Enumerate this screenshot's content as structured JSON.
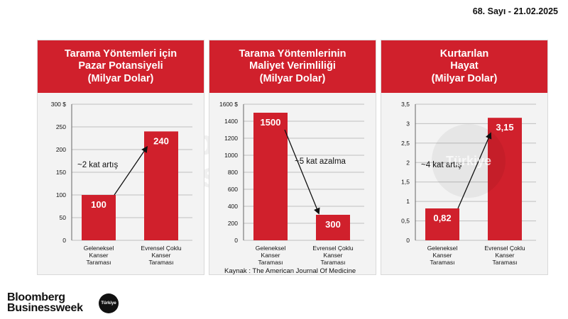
{
  "issue_line": "68. Sayı - 21.02.2025",
  "watermark": {
    "line1": "Bloomberg",
    "line2": "Businessweek",
    "badge": "Türkiye"
  },
  "source": "Kaynak : The American Journal Of Medicine",
  "logo": {
    "line1": "Bloomberg",
    "line2": "Businessweek",
    "badge": "Türkiye"
  },
  "colors": {
    "accent": "#d0202c",
    "bar": "#d0202c",
    "grid": "#bfbfbf"
  },
  "chart_data": [
    {
      "type": "bar",
      "title_lines": [
        "Tarama Yöntemleri için",
        "Pazar Potansiyeli",
        "(Milyar Dolar)"
      ],
      "categories": [
        [
          "Geleneksel",
          "Kanser",
          "Taraması"
        ],
        [
          "Evrensel Çoklu",
          "Kanser",
          "Taraması"
        ]
      ],
      "values": [
        100,
        240
      ],
      "value_labels": [
        "100",
        "240"
      ],
      "ylim": [
        0,
        300
      ],
      "ticks": [
        0,
        50,
        100,
        150,
        200,
        250,
        300
      ],
      "tick_labels": [
        "0",
        "50",
        "100",
        "150",
        "200",
        "250",
        "300 $"
      ],
      "annotation": "~2 kat artış"
    },
    {
      "type": "bar",
      "title_lines": [
        "Tarama Yöntemlerinin",
        "Maliyet Verimliliği",
        "(Milyar Dolar)"
      ],
      "categories": [
        [
          "Geleneksel",
          "Kanser",
          "Taraması"
        ],
        [
          "Evrensel Çoklu",
          "Kanser",
          "Taraması"
        ]
      ],
      "values": [
        1500,
        300
      ],
      "value_labels": [
        "1500",
        "300"
      ],
      "ylim": [
        0,
        1600
      ],
      "ticks": [
        0,
        200,
        400,
        600,
        800,
        1000,
        1200,
        1400,
        1600
      ],
      "tick_labels": [
        "0",
        "200",
        "400",
        "600",
        "800",
        "1000",
        "1200",
        "1400",
        "1600 $"
      ],
      "annotation": "~5 kat azalma"
    },
    {
      "type": "bar",
      "title_lines": [
        "Kurtarılan",
        "Hayat",
        "(Milyar Dolar)"
      ],
      "categories": [
        [
          "Geleneksel",
          "Kanser",
          "Taraması"
        ],
        [
          "Evrensel Çoklu",
          "Kanser",
          "Taraması"
        ]
      ],
      "values": [
        0.82,
        3.15
      ],
      "value_labels": [
        "0,82",
        "3,15"
      ],
      "ylim": [
        0,
        3.5
      ],
      "ticks": [
        0,
        0.5,
        1,
        1.5,
        2,
        2.5,
        3,
        3.5
      ],
      "tick_labels": [
        "0",
        "0,5",
        "1",
        "1,5",
        "2",
        "2,5",
        "3",
        "3,5"
      ],
      "annotation": "~4 kat artış"
    }
  ]
}
